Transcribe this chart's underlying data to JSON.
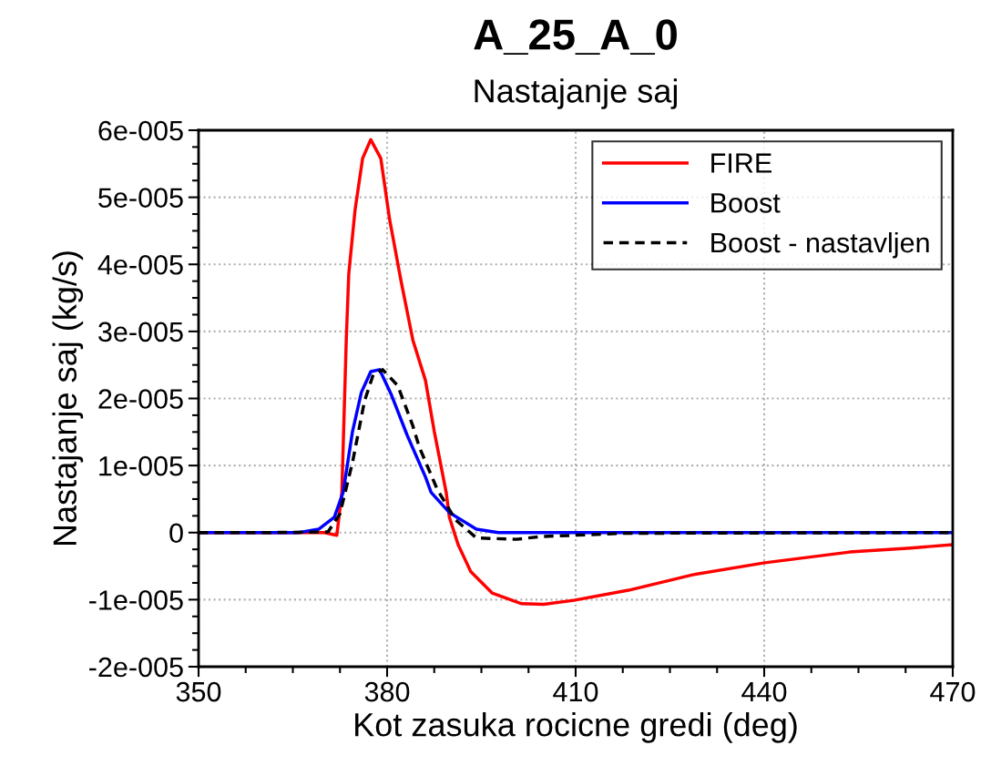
{
  "chart_data": {
    "type": "line",
    "title": "A_25_A_0",
    "subtitle": "Nastajanje saj",
    "xlabel": "Kot zasuka rocicne gredi (deg)",
    "ylabel": "Nastajanje saj (kg/s)",
    "xlim": [
      350,
      470
    ],
    "xticks": [
      350,
      {
        "value": 357.5,
        "label": null
      },
      {
        "value": 365,
        "label": null
      },
      {
        "value": 372.5,
        "label": null
      },
      380,
      {
        "value": 387.5,
        "label": null
      },
      {
        "value": 395,
        "label": null
      },
      {
        "value": 402.5,
        "label": null
      },
      410,
      {
        "value": 417.5,
        "label": null
      },
      {
        "value": 425,
        "label": null
      },
      {
        "value": 432.5,
        "label": null
      },
      440,
      {
        "value": 447.5,
        "label": null
      },
      {
        "value": 455,
        "label": null
      },
      {
        "value": 462.5,
        "label": null
      },
      470
    ],
    "ylim": [
      -2e-05,
      6e-05
    ],
    "yticks": [
      {
        "value": -2e-05,
        "label": "-2e-005"
      },
      {
        "value": -1.75e-05,
        "label": null
      },
      {
        "value": -1.5e-05,
        "label": null
      },
      {
        "value": -1.25e-05,
        "label": null
      },
      {
        "value": -1e-05,
        "label": "-1e-005"
      },
      {
        "value": -7.5e-06,
        "label": null
      },
      {
        "value": -5e-06,
        "label": null
      },
      {
        "value": -2.5e-06,
        "label": null
      },
      0,
      {
        "value": 2.5e-06,
        "label": null
      },
      {
        "value": 5e-06,
        "label": null
      },
      {
        "value": 7.5e-06,
        "label": null
      },
      {
        "value": 1e-05,
        "label": "1e-005"
      },
      {
        "value": 1.25e-05,
        "label": null
      },
      {
        "value": 1.5e-05,
        "label": null
      },
      {
        "value": 1.75e-05,
        "label": null
      },
      {
        "value": 2e-05,
        "label": "2e-005"
      },
      {
        "value": 2.25e-05,
        "label": null
      },
      {
        "value": 2.5e-05,
        "label": null
      },
      {
        "value": 2.75e-05,
        "label": null
      },
      {
        "value": 3e-05,
        "label": "3e-005"
      },
      {
        "value": 3.25e-05,
        "label": null
      },
      {
        "value": 3.5e-05,
        "label": null
      },
      {
        "value": 3.75e-05,
        "label": null
      },
      {
        "value": 4e-05,
        "label": "4e-005"
      },
      {
        "value": 4.25e-05,
        "label": null
      },
      {
        "value": 4.5e-05,
        "label": null
      },
      {
        "value": 4.75e-05,
        "label": null
      },
      {
        "value": 5e-05,
        "label": "5e-005"
      },
      {
        "value": 5.25e-05,
        "label": null
      },
      {
        "value": 5.5e-05,
        "label": null
      },
      {
        "value": 5.75e-05,
        "label": null
      },
      {
        "value": 6e-05,
        "label": "6e-005"
      }
    ],
    "grid": true,
    "legend": "top right",
    "series": [
      {
        "name": "FIRE",
        "color": "#ff0000",
        "line_style": "solid",
        "x": [
          350,
          360,
          370,
          372.0,
          372.8,
          373.5,
          373.9,
          374.9,
          376.1,
          377.4,
          379.0,
          380.4,
          382.2,
          384.1,
          386.1,
          387.5,
          389.4,
          389.9,
          391.3,
          393.3,
          396.7,
          401.4,
          404.9,
          409.7,
          418.4,
          428.6,
          440.1,
          453.6,
          463.3,
          469.9
        ],
        "values": [
          0,
          0,
          0,
          -4e-07,
          6e-06,
          2.87e-05,
          3.86e-05,
          4.81e-05,
          5.58e-05,
          5.86e-05,
          5.58e-05,
          4.67e-05,
          3.76e-05,
          2.87e-05,
          2.27e-05,
          1.51e-05,
          6e-06,
          2.3e-06,
          -1.8e-06,
          -5.8e-06,
          -9e-06,
          -1.06e-05,
          -1.07e-05,
          -1.01e-05,
          -8.6e-06,
          -6.3e-06,
          -4.5e-06,
          -2.9e-06,
          -2.3e-06,
          -1.8e-06
        ]
      },
      {
        "name": "Boost",
        "color": "#0000ff",
        "line_style": "solid",
        "x": [
          350,
          360,
          366,
          369.1,
          371.6,
          373.0,
          374.5,
          375.9,
          377.4,
          378.8,
          380.7,
          383.2,
          386.1,
          387.0,
          389.9,
          394.2,
          397.7,
          420,
          470
        ],
        "values": [
          0,
          0,
          0,
          5e-07,
          2.3e-06,
          6e-06,
          1.51e-05,
          2.09e-05,
          2.4e-05,
          2.43e-05,
          2.05e-05,
          1.45e-05,
          8.3e-06,
          6e-06,
          3e-06,
          5e-07,
          0,
          0,
          0
        ]
      },
      {
        "name": "Boost - nastavljen",
        "color": "#000000",
        "line_style": "dashed",
        "x": [
          350,
          360,
          370.6,
          372.5,
          374.5,
          376.4,
          377.8,
          379.3,
          381.7,
          384.1,
          385.1,
          388.0,
          390.9,
          394.2,
          400.6,
          404.3,
          418.0,
          470
        ],
        "values": [
          0,
          0,
          1e-07,
          2.8e-06,
          1.05e-05,
          1.96e-05,
          2.36e-05,
          2.43e-05,
          2.19e-05,
          1.59e-05,
          1.28e-05,
          6.4e-06,
          1.9e-06,
          -8e-07,
          -1e-06,
          -6e-07,
          -1e-07,
          0
        ]
      }
    ]
  }
}
